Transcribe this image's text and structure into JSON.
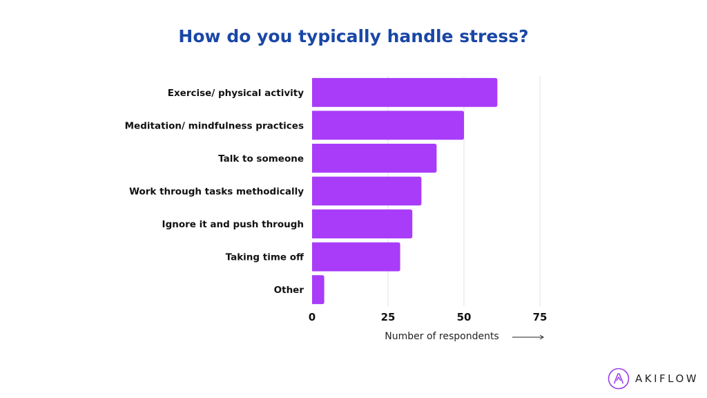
{
  "title": "How do you typically handle stress?",
  "brand": {
    "name": "AKIFLOW",
    "logo_icon": "akiflow-logo-icon"
  },
  "colors": {
    "bar": "#a83cf9",
    "title": "#1a47a6",
    "grid": "#e2e2e2",
    "logo": "#9b3ee8"
  },
  "chart_data": {
    "type": "bar",
    "orientation": "horizontal",
    "title": "How do you typically handle stress?",
    "xlabel": "Number of respondents",
    "ylabel": "",
    "categories": [
      "Exercise/ physical activity",
      "Meditation/ mindfulness practices",
      "Talk to someone",
      "Work through tasks methodically",
      "Ignore it and push through",
      "Taking time off",
      "Other"
    ],
    "values": [
      61,
      50,
      41,
      36,
      33,
      29,
      4
    ],
    "xlim": [
      0,
      75
    ],
    "xticks": [
      "0",
      "25",
      "50",
      "75"
    ],
    "grid": "vertical",
    "legend": "none"
  }
}
